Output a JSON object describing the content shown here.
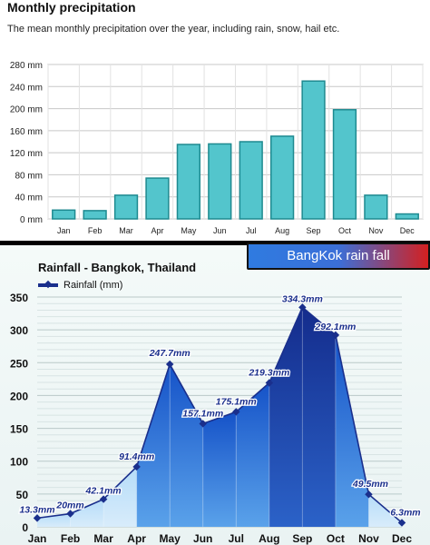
{
  "top": {
    "title": "Monthly precipitation",
    "subtitle": "The mean monthly precipitation over the year, including rain, snow, hail etc."
  },
  "bottom": {
    "banner": "BangKok rain fall",
    "title": "Rainfall - Bangkok, Thailand",
    "legend": "Rainfall (mm)"
  },
  "chart_data": [
    {
      "type": "bar",
      "title": "Monthly precipitation",
      "subtitle": "The mean monthly precipitation over the year, including rain, snow, hail etc.",
      "categories": [
        "Jan",
        "Feb",
        "Mar",
        "Apr",
        "May",
        "Jun",
        "Jul",
        "Aug",
        "Sep",
        "Oct",
        "Nov",
        "Dec"
      ],
      "values": [
        16,
        15,
        43,
        74,
        135,
        136,
        140,
        150,
        250,
        198,
        43,
        9
      ],
      "ylim": [
        0,
        280
      ],
      "yticks": [
        0,
        40,
        80,
        120,
        160,
        200,
        240,
        280
      ],
      "ytick_labels": [
        "0 mm",
        "40 mm",
        "80 mm",
        "120 mm",
        "160 mm",
        "200 mm",
        "240 mm",
        "280 mm"
      ],
      "grid": true,
      "colors": {
        "bar": "#53c5cc",
        "bar_edge": "#1e8a90"
      }
    },
    {
      "type": "area",
      "title": "Rainfall - Bangkok, Thailand",
      "categories": [
        "Jan",
        "Feb",
        "Mar",
        "Apr",
        "May",
        "Jun",
        "Jul",
        "Aug",
        "Sep",
        "Oct",
        "Nov",
        "Dec"
      ],
      "series": [
        {
          "name": "Rainfall (mm)",
          "values": [
            13.3,
            20,
            42.1,
            91.4,
            247.7,
            157.1,
            175.1,
            219.3,
            334.3,
            292.1,
            49.5,
            6.3
          ],
          "labels": [
            "13.3mm",
            "20mm",
            "42.1mm",
            "91.4mm",
            "247.7mm",
            "157.1mm",
            "175.1mm",
            "219.3mm",
            "334.3mm",
            "292.1mm",
            "49.5mm",
            "6.3mm"
          ]
        }
      ],
      "ylim": [
        0,
        350
      ],
      "yticks": [
        0,
        50,
        100,
        150,
        200,
        250,
        300,
        350
      ],
      "grid": true,
      "legend_position": "top-left",
      "colors": {
        "line": "#1a2f8c",
        "fill_light": "#8ec3f2",
        "fill_dark": "#1552c8",
        "fill_peak": "#1a2f8c",
        "label": "#1a2f8c"
      }
    }
  ]
}
